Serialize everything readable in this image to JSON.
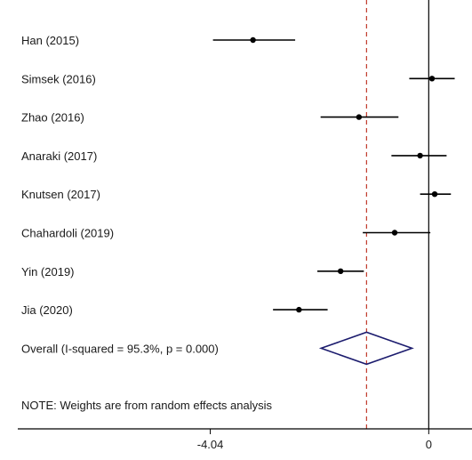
{
  "chart_data": {
    "type": "forest",
    "x_ticks": [
      {
        "value": -4.04,
        "label": "-4.04"
      },
      {
        "value": 0,
        "label": "0"
      }
    ],
    "xlim": [
      -7.6,
      0.8
    ],
    "null_line": 0,
    "overall_line": -1.15,
    "studies": [
      {
        "label": "Han (2015)",
        "estimate": -3.25,
        "lower": -3.99,
        "upper": -2.47
      },
      {
        "label": "Simsek (2016)",
        "estimate": 0.06,
        "lower": -0.36,
        "upper": 0.48
      },
      {
        "label": "Zhao (2016)",
        "estimate": -1.29,
        "lower": -2.0,
        "upper": -0.56
      },
      {
        "label": "Anaraki (2017)",
        "estimate": -0.16,
        "lower": -0.69,
        "upper": 0.33
      },
      {
        "label": "Knutsen (2017)",
        "estimate": 0.11,
        "lower": -0.16,
        "upper": 0.41
      },
      {
        "label": "Chahardoli (2019)",
        "estimate": -0.63,
        "lower": -1.22,
        "upper": 0.03
      },
      {
        "label": "Yin (2019)",
        "estimate": -1.63,
        "lower": -2.06,
        "upper": -1.2
      },
      {
        "label": "Jia (2020)",
        "estimate": -2.4,
        "lower": -2.88,
        "upper": -1.87
      }
    ],
    "overall": {
      "label": "Overall  (I-squared = 95.3%, p = 0.000)",
      "estimate": -1.15,
      "lower": -1.99,
      "upper": -0.31
    },
    "note": "NOTE: Weights are from random effects analysis",
    "colors": {
      "ci_line": "#000000",
      "point": "#000000",
      "diamond": "#1c1c6e",
      "overall_line": "#c0392b",
      "axis": "#000000"
    }
  }
}
